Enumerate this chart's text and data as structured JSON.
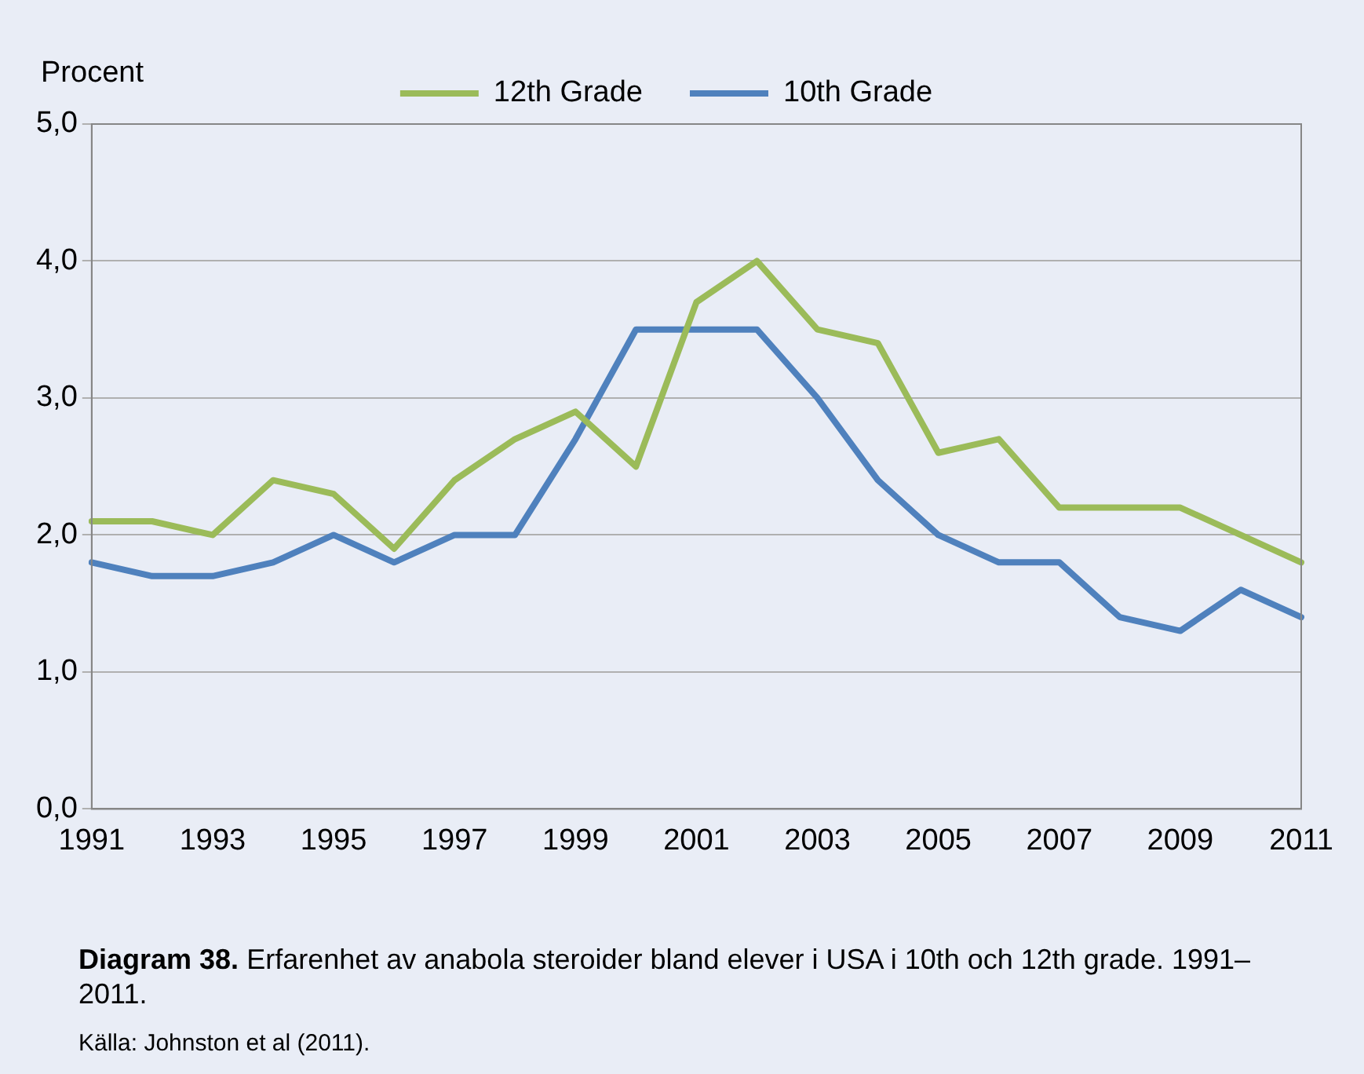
{
  "chart_data": {
    "type": "line",
    "title": "Diagram 38.",
    "ylabel": "Procent",
    "annotations": [
      "Erfarenhet av anabola steroider bland elever i USA i 10th och 12th grade. 1991–2011.",
      "Källa: Johnston et al (2011)."
    ],
    "categories": [
      "1991",
      null,
      "1993",
      null,
      "1995",
      null,
      "1997",
      null,
      "1999",
      null,
      "2001",
      null,
      "2003",
      null,
      "2005",
      null,
      "2007",
      null,
      "2009",
      null,
      "2011"
    ],
    "series": [
      {
        "name": "12th Grade",
        "color": "#9bbb59",
        "values": [
          2.1,
          2.1,
          2.0,
          2.4,
          2.3,
          1.9,
          2.4,
          2.7,
          2.9,
          2.5,
          3.7,
          4.0,
          3.5,
          3.4,
          2.6,
          2.7,
          2.2,
          2.2,
          2.2,
          2.0,
          1.8
        ]
      },
      {
        "name": "10th Grade",
        "color": "#4f81bd",
        "values": [
          1.8,
          1.7,
          1.7,
          1.8,
          2.0,
          1.8,
          2.0,
          2.0,
          2.7,
          3.5,
          3.5,
          3.5,
          3.0,
          2.4,
          2.0,
          1.8,
          1.8,
          1.4,
          1.3,
          1.6,
          1.4
        ]
      }
    ],
    "ylim": [
      0,
      5
    ],
    "yticks": [
      {
        "value": 0,
        "label": "0,0"
      },
      {
        "value": 1,
        "label": "1,0"
      },
      {
        "value": 2,
        "label": "2,0"
      },
      {
        "value": 3,
        "label": "3,0"
      },
      {
        "value": 4,
        "label": "4,0"
      },
      {
        "value": 5,
        "label": "5,0"
      }
    ],
    "grid": "y",
    "legend": "top",
    "marker": "none",
    "line_style": "solid"
  }
}
